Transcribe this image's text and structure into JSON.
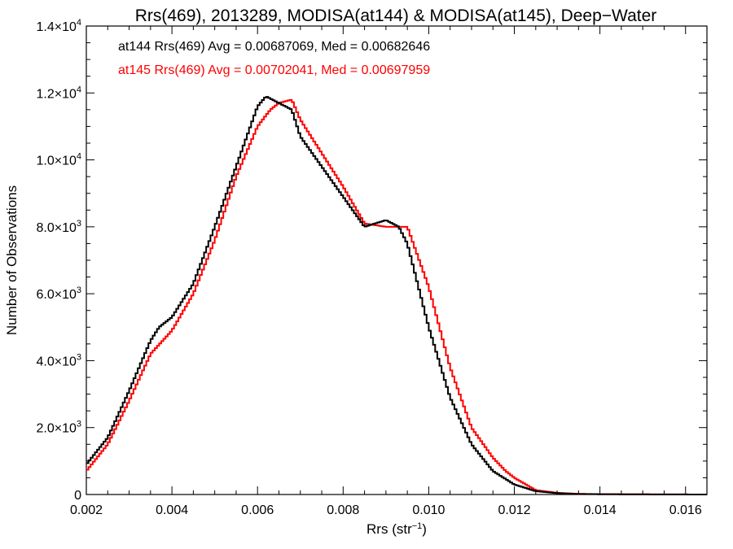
{
  "chart_data": {
    "type": "line",
    "step": true,
    "title": "Rrs(469), 2013289, MODISA(at144) & MODISA(at145), Deep−Water",
    "xlabel": "Rrs (str",
    "xlabel_sup": "−1",
    "xlabel_tail": ")",
    "ylabel": "Number of Observations",
    "xlim": [
      0.002,
      0.0165
    ],
    "ylim": [
      0,
      14000
    ],
    "x_ticks": [
      0.002,
      0.004,
      0.006,
      0.008,
      0.01,
      0.012,
      0.014,
      0.016
    ],
    "x_tick_labels": [
      "0.002",
      "0.004",
      "0.006",
      "0.008",
      "0.010",
      "0.012",
      "0.014",
      "0.016"
    ],
    "y_ticks": [
      0,
      2000,
      4000,
      6000,
      8000,
      10000,
      12000,
      14000
    ],
    "y_tick_labels": [
      {
        "mant": "0",
        "exp": ""
      },
      {
        "mant": "2.0×10",
        "exp": "3"
      },
      {
        "mant": "4.0×10",
        "exp": "3"
      },
      {
        "mant": "6.0×10",
        "exp": "3"
      },
      {
        "mant": "8.0×10",
        "exp": "3"
      },
      {
        "mant": "1.0×10",
        "exp": "4"
      },
      {
        "mant": "1.2×10",
        "exp": "4"
      },
      {
        "mant": "1.4×10",
        "exp": "4"
      }
    ],
    "annotations": [
      {
        "text": "at144 Rrs(469) Avg = 0.00687069, Med = 0.00682646",
        "color": "#000000"
      },
      {
        "text": "at145 Rrs(469) Avg = 0.00702041, Med = 0.00697959",
        "color": "#ff0000"
      }
    ],
    "series": [
      {
        "name": "at144",
        "color": "#000000",
        "x": [
          0.002,
          0.0025,
          0.003,
          0.0035,
          0.0037,
          0.004,
          0.0045,
          0.005,
          0.0055,
          0.006,
          0.0062,
          0.0065,
          0.0068,
          0.007,
          0.0075,
          0.008,
          0.0085,
          0.009,
          0.0093,
          0.0095,
          0.01,
          0.0105,
          0.011,
          0.0115,
          0.012,
          0.0125,
          0.013,
          0.0135,
          0.014,
          0.015,
          0.0165
        ],
        "values": [
          900,
          1700,
          3100,
          4600,
          5000,
          5300,
          6300,
          8000,
          9800,
          11600,
          11900,
          11700,
          11500,
          10700,
          9800,
          8900,
          8000,
          8200,
          8000,
          7500,
          5000,
          2900,
          1500,
          700,
          300,
          100,
          40,
          15,
          10,
          5,
          0
        ]
      },
      {
        "name": "at145",
        "color": "#ff0000",
        "x": [
          0.002,
          0.0025,
          0.003,
          0.0035,
          0.004,
          0.0045,
          0.005,
          0.0055,
          0.006,
          0.0063,
          0.0065,
          0.0068,
          0.007,
          0.0075,
          0.008,
          0.0085,
          0.009,
          0.0093,
          0.0095,
          0.01,
          0.0105,
          0.011,
          0.0115,
          0.0118,
          0.012,
          0.0125,
          0.013,
          0.0135,
          0.014,
          0.015,
          0.0165
        ],
        "values": [
          700,
          1500,
          2800,
          4200,
          4900,
          6000,
          7600,
          9500,
          11000,
          11500,
          11700,
          11800,
          11200,
          10200,
          9200,
          8100,
          8000,
          8000,
          8000,
          6200,
          3800,
          2000,
          1100,
          700,
          500,
          130,
          50,
          20,
          10,
          5,
          0
        ]
      }
    ]
  }
}
